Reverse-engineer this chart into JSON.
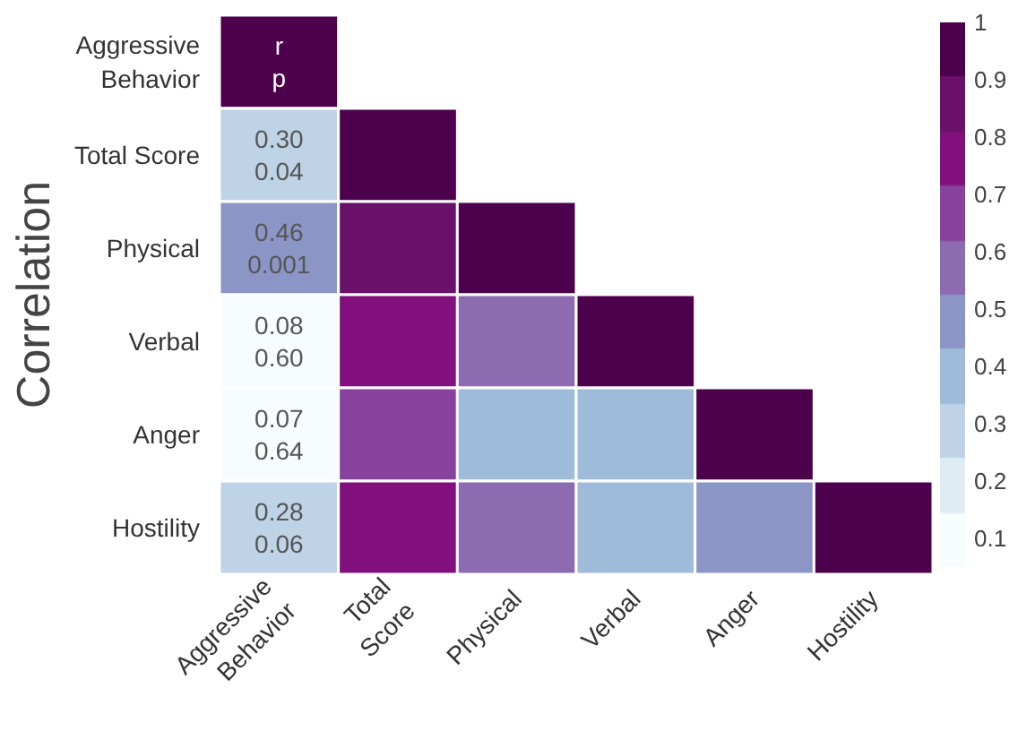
{
  "chart_data": {
    "type": "heatmap",
    "ylabel": "Correlation",
    "categories": [
      "Aggressive Behavior",
      "Total Score",
      "Physical",
      "Verbal",
      "Anger",
      "Hostility"
    ],
    "y_categories": [
      "Aggressive Behavior",
      "Total Score",
      "Physical",
      "Verbal",
      "Anger",
      "Hostility"
    ],
    "cells": [
      [
        1,
        null,
        null,
        null,
        null,
        null
      ],
      [
        0.3,
        1,
        null,
        null,
        null,
        null
      ],
      [
        0.46,
        0.85,
        1,
        null,
        null,
        null
      ],
      [
        0.08,
        0.75,
        0.6,
        1,
        null,
        null
      ],
      [
        0.07,
        0.65,
        0.4,
        0.4,
        1,
        null
      ],
      [
        0.28,
        0.8,
        0.6,
        0.4,
        0.5,
        1
      ]
    ],
    "cell_labels": [
      [
        "r\np",
        null,
        null,
        null,
        null,
        null
      ],
      [
        "0.30\n0.04",
        null,
        null,
        null,
        null,
        null
      ],
      [
        "0.46\n0.001",
        null,
        null,
        null,
        null,
        null
      ],
      [
        "0.08\n0.60",
        null,
        null,
        null,
        null,
        null
      ],
      [
        "0.07\n0.64",
        null,
        null,
        null,
        null,
        null
      ],
      [
        "0.28\n0.06",
        null,
        null,
        null,
        null,
        null
      ]
    ],
    "clim": [
      0.05,
      1
    ],
    "cticks": [
      0.1,
      0.2,
      0.3,
      0.4,
      0.5,
      0.6,
      0.7,
      0.8,
      0.9,
      1
    ]
  }
}
